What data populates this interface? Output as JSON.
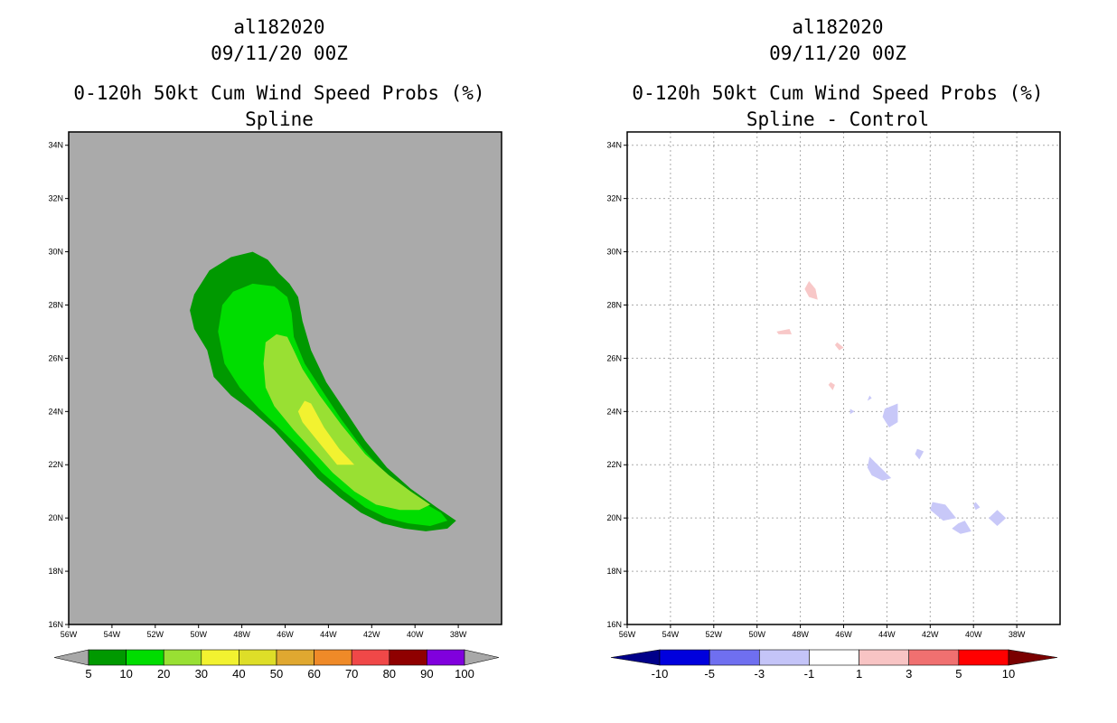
{
  "chart_data": [
    {
      "type": "filled-contour-map",
      "storm_id": "al182020",
      "datetime": "09/11/20 00Z",
      "title": "0-120h 50kt Cum Wind Speed Probs (%)",
      "subtitle": "Spline",
      "units": "%",
      "xlim": [
        -56,
        -36
      ],
      "ylim": [
        16,
        34.5
      ],
      "x_ticks": [
        -56,
        -54,
        -52,
        -50,
        -48,
        -46,
        -44,
        -42,
        -40,
        -38
      ],
      "x_tick_labels": [
        "56W",
        "54W",
        "52W",
        "50W",
        "48W",
        "46W",
        "44W",
        "42W",
        "40W",
        "38W"
      ],
      "y_ticks": [
        16,
        18,
        20,
        22,
        24,
        26,
        28,
        30,
        32,
        34
      ],
      "y_tick_labels": [
        "16N",
        "18N",
        "20N",
        "22N",
        "24N",
        "26N",
        "28N",
        "30N",
        "32N",
        "34N"
      ],
      "grid": false,
      "background_color": "#aaaaaa",
      "colorbar": {
        "levels": [
          "5",
          "10",
          "20",
          "30",
          "40",
          "50",
          "60",
          "70",
          "80",
          "90",
          "100"
        ],
        "colors": [
          "#009900",
          "#00dd00",
          "#99e033",
          "#f2f230",
          "#dede28",
          "#e0a830",
          "#ef8a28",
          "#f04848",
          "#8f0000",
          "#8000dd"
        ],
        "extend_color": "#a8a8a8"
      },
      "contours": [
        {
          "level": "5-10",
          "color": "#009900",
          "points": [
            [
              -50.2,
              28.4
            ],
            [
              -49.5,
              29.3
            ],
            [
              -48.5,
              29.8
            ],
            [
              -47.5,
              30.0
            ],
            [
              -46.8,
              29.7
            ],
            [
              -46.3,
              29.2
            ],
            [
              -45.8,
              28.8
            ],
            [
              -45.4,
              28.3
            ],
            [
              -45.2,
              27.4
            ],
            [
              -44.8,
              26.3
            ],
            [
              -44.1,
              25.1
            ],
            [
              -43.2,
              24.0
            ],
            [
              -42.3,
              22.9
            ],
            [
              -41.3,
              21.9
            ],
            [
              -40.2,
              21.1
            ],
            [
              -39.0,
              20.4
            ],
            [
              -38.1,
              19.9
            ],
            [
              -38.5,
              19.6
            ],
            [
              -39.5,
              19.5
            ],
            [
              -40.5,
              19.6
            ],
            [
              -41.5,
              19.8
            ],
            [
              -42.5,
              20.2
            ],
            [
              -43.5,
              20.8
            ],
            [
              -44.5,
              21.5
            ],
            [
              -45.5,
              22.4
            ],
            [
              -46.5,
              23.3
            ],
            [
              -47.5,
              24.0
            ],
            [
              -48.5,
              24.6
            ],
            [
              -49.3,
              25.3
            ],
            [
              -49.6,
              26.3
            ],
            [
              -50.2,
              27.1
            ],
            [
              -50.4,
              27.8
            ]
          ]
        },
        {
          "level": "10-20",
          "color": "#00dd00",
          "points": [
            [
              -49.1,
              27.0
            ],
            [
              -48.9,
              28.0
            ],
            [
              -48.4,
              28.5
            ],
            [
              -47.5,
              28.8
            ],
            [
              -46.5,
              28.7
            ],
            [
              -45.9,
              28.3
            ],
            [
              -45.7,
              27.7
            ],
            [
              -45.6,
              26.8
            ],
            [
              -45.1,
              25.8
            ],
            [
              -44.3,
              24.8
            ],
            [
              -43.4,
              23.7
            ],
            [
              -42.4,
              22.6
            ],
            [
              -41.3,
              21.6
            ],
            [
              -40.1,
              20.8
            ],
            [
              -38.8,
              20.2
            ],
            [
              -38.5,
              19.9
            ],
            [
              -39.3,
              19.7
            ],
            [
              -40.3,
              19.8
            ],
            [
              -41.3,
              20.0
            ],
            [
              -42.3,
              20.4
            ],
            [
              -43.3,
              21.0
            ],
            [
              -44.3,
              21.7
            ],
            [
              -45.3,
              22.6
            ],
            [
              -46.3,
              23.4
            ],
            [
              -47.2,
              24.1
            ],
            [
              -48.1,
              24.9
            ],
            [
              -48.8,
              25.8
            ]
          ]
        },
        {
          "level": "20-30",
          "color": "#99e033",
          "points": [
            [
              -47.0,
              25.8
            ],
            [
              -46.9,
              26.6
            ],
            [
              -46.4,
              26.9
            ],
            [
              -45.9,
              26.8
            ],
            [
              -45.6,
              26.3
            ],
            [
              -45.2,
              25.6
            ],
            [
              -44.4,
              24.6
            ],
            [
              -43.4,
              23.5
            ],
            [
              -42.3,
              22.4
            ],
            [
              -41.2,
              21.6
            ],
            [
              -40.2,
              21.0
            ],
            [
              -39.3,
              20.5
            ],
            [
              -39.8,
              20.3
            ],
            [
              -40.7,
              20.3
            ],
            [
              -41.8,
              20.5
            ],
            [
              -42.8,
              21.0
            ],
            [
              -43.8,
              21.7
            ],
            [
              -44.7,
              22.5
            ],
            [
              -45.6,
              23.3
            ],
            [
              -46.5,
              24.2
            ],
            [
              -46.9,
              24.9
            ]
          ]
        },
        {
          "level": "30-40",
          "color": "#f2f230",
          "points": [
            [
              -45.1,
              24.4
            ],
            [
              -44.8,
              24.3
            ],
            [
              -44.2,
              23.4
            ],
            [
              -43.5,
              22.6
            ],
            [
              -42.8,
              22.0
            ],
            [
              -43.6,
              22.0
            ],
            [
              -44.4,
              22.8
            ],
            [
              -45.2,
              23.6
            ],
            [
              -45.4,
              24.0
            ]
          ]
        }
      ]
    },
    {
      "type": "filled-contour-map",
      "storm_id": "al182020",
      "datetime": "09/11/20 00Z",
      "title": "0-120h 50kt Cum Wind Speed Probs (%)",
      "subtitle": "Spline - Control",
      "units": "%",
      "xlim": [
        -56,
        -36
      ],
      "ylim": [
        16,
        34.5
      ],
      "x_ticks": [
        -56,
        -54,
        -52,
        -50,
        -48,
        -46,
        -44,
        -42,
        -40,
        -38
      ],
      "x_tick_labels": [
        "56W",
        "54W",
        "52W",
        "50W",
        "48W",
        "46W",
        "44W",
        "42W",
        "40W",
        "38W"
      ],
      "y_ticks": [
        16,
        18,
        20,
        22,
        24,
        26,
        28,
        30,
        32,
        34
      ],
      "y_tick_labels": [
        "16N",
        "18N",
        "20N",
        "22N",
        "24N",
        "26N",
        "28N",
        "30N",
        "32N",
        "34N"
      ],
      "grid": true,
      "background_color": "#ffffff",
      "colorbar": {
        "levels": [
          "-10",
          "-5",
          "-3",
          "-1",
          "1",
          "3",
          "5",
          "10"
        ],
        "colors": [
          "#0000dd",
          "#6f6ff0",
          "#c4c4f8",
          "#ffffff",
          "#f8c4c4",
          "#f07070",
          "#ff0000"
        ],
        "low_extend_color": "#00008a",
        "high_extend_color": "#7a0000"
      },
      "contours": [
        {
          "level": "1-3",
          "color": "#f8c8c8",
          "points": [
            [
              -47.6,
              28.9
            ],
            [
              -47.3,
              28.6
            ],
            [
              -47.2,
              28.2
            ],
            [
              -47.6,
              28.3
            ],
            [
              -47.8,
              28.6
            ]
          ]
        },
        {
          "level": "1-3",
          "color": "#f8c8c8",
          "points": [
            [
              -49.1,
              27.0
            ],
            [
              -48.5,
              27.1
            ],
            [
              -48.4,
              26.9
            ],
            [
              -49.0,
              26.9
            ]
          ]
        },
        {
          "level": "1-3",
          "color": "#f8c8c8",
          "points": [
            [
              -46.3,
              26.6
            ],
            [
              -46.0,
              26.4
            ],
            [
              -46.2,
              26.3
            ],
            [
              -46.4,
              26.5
            ]
          ]
        },
        {
          "level": "1-3",
          "color": "#f8c8c8",
          "points": [
            [
              -46.6,
              25.1
            ],
            [
              -46.4,
              25.0
            ],
            [
              -46.5,
              24.8
            ],
            [
              -46.7,
              25.0
            ]
          ]
        },
        {
          "level": "-3--1",
          "color": "#c8c8f8",
          "points": [
            [
              -44.8,
              24.6
            ],
            [
              -44.7,
              24.5
            ],
            [
              -44.9,
              24.4
            ]
          ]
        },
        {
          "level": "-3--1",
          "color": "#c8c8f8",
          "points": [
            [
              -45.7,
              24.1
            ],
            [
              -45.5,
              24.0
            ],
            [
              -45.7,
              23.9
            ]
          ]
        },
        {
          "level": "-3--1",
          "color": "#c8c8f8",
          "points": [
            [
              -44.1,
              24.1
            ],
            [
              -43.5,
              24.3
            ],
            [
              -43.5,
              23.6
            ],
            [
              -43.9,
              23.4
            ],
            [
              -44.2,
              23.8
            ]
          ]
        },
        {
          "level": "-3--1",
          "color": "#c8c8f8",
          "points": [
            [
              -42.6,
              22.6
            ],
            [
              -42.3,
              22.5
            ],
            [
              -42.5,
              22.2
            ],
            [
              -42.7,
              22.4
            ]
          ]
        },
        {
          "level": "-3--1",
          "color": "#c8c8f8",
          "points": [
            [
              -44.8,
              22.3
            ],
            [
              -44.3,
              21.9
            ],
            [
              -43.8,
              21.5
            ],
            [
              -44.2,
              21.4
            ],
            [
              -44.7,
              21.6
            ],
            [
              -44.9,
              21.9
            ]
          ]
        },
        {
          "level": "-3--1",
          "color": "#c8c8f8",
          "points": [
            [
              -41.9,
              20.6
            ],
            [
              -41.3,
              20.5
            ],
            [
              -40.8,
              20.0
            ],
            [
              -41.4,
              19.9
            ],
            [
              -42.0,
              20.3
            ]
          ]
        },
        {
          "level": "-3--1",
          "color": "#c8c8f8",
          "points": [
            [
              -39.9,
              20.6
            ],
            [
              -39.7,
              20.4
            ],
            [
              -39.9,
              20.3
            ],
            [
              -40.0,
              20.5
            ]
          ]
        },
        {
          "level": "-3--1",
          "color": "#c8c8f8",
          "points": [
            [
              -40.4,
              19.9
            ],
            [
              -40.1,
              19.5
            ],
            [
              -40.6,
              19.4
            ],
            [
              -41.0,
              19.6
            ],
            [
              -40.7,
              19.8
            ]
          ]
        },
        {
          "level": "-3--1",
          "color": "#c8c8f8",
          "points": [
            [
              -38.9,
              20.3
            ],
            [
              -38.5,
              20.0
            ],
            [
              -38.9,
              19.7
            ],
            [
              -39.3,
              20.0
            ]
          ]
        }
      ]
    }
  ]
}
